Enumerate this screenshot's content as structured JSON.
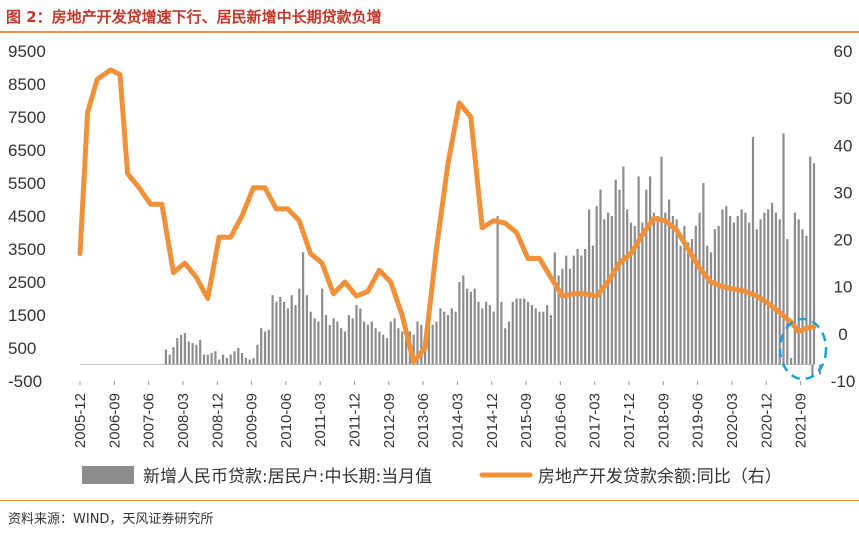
{
  "header": {
    "title": "图 2：房地产开发贷增速下行、居民新增中长期贷款负增"
  },
  "footer": {
    "source": "资料来源：WIND，天风证券研究所"
  },
  "colors": {
    "bar": "#8c8c8c",
    "line": "#f0913a",
    "accent_rule": "#e8913a",
    "highlight": "#1aa3d9",
    "title": "#c0392b"
  },
  "chart_data": {
    "type": "bar+line",
    "left_axis": {
      "ylim": [
        -500,
        9500
      ],
      "ticks": [
        -500,
        500,
        1500,
        2500,
        3500,
        4500,
        5500,
        6500,
        7500,
        8500,
        9500
      ]
    },
    "right_axis": {
      "ylim": [
        -10,
        60
      ],
      "ticks": [
        -10,
        0,
        10,
        20,
        30,
        40,
        50,
        60
      ]
    },
    "x_range": [
      2005.917,
      2021.917
    ],
    "x_tick_labels": [
      "2005-12",
      "2006-09",
      "2007-06",
      "2008-03",
      "2008-12",
      "2009-09",
      "2010-06",
      "2011-03",
      "2011-12",
      "2012-09",
      "2013-06",
      "2014-03",
      "2014-12",
      "2015-09",
      "2016-06",
      "2017-03",
      "2017-12",
      "2018-09",
      "2019-06",
      "2020-03",
      "2020-12",
      "2021-09"
    ],
    "legend": [
      {
        "label": "新增人民币贷款:居民户:中长期:当月值",
        "type": "bar"
      },
      {
        "label": "房地产开发贷款余额:同比（右）",
        "type": "line"
      }
    ],
    "series": [
      {
        "name": "新增人民币贷款:居民户:中长期:当月值",
        "axis": "left",
        "type": "bar",
        "values": [
          [
            2006.958,
            0
          ],
          [
            2007.042,
            0
          ],
          [
            2007.125,
            0
          ],
          [
            2007.208,
            0
          ],
          [
            2007.292,
            0
          ],
          [
            2007.375,
            0
          ],
          [
            2007.458,
            0
          ],
          [
            2007.542,
            0
          ],
          [
            2007.625,
            0
          ],
          [
            2007.708,
            0
          ],
          [
            2007.792,
            450
          ],
          [
            2007.875,
            300
          ],
          [
            2007.958,
            530
          ],
          [
            2008.042,
            800
          ],
          [
            2008.125,
            900
          ],
          [
            2008.208,
            950
          ],
          [
            2008.292,
            700
          ],
          [
            2008.375,
            650
          ],
          [
            2008.458,
            600
          ],
          [
            2008.542,
            750
          ],
          [
            2008.625,
            300
          ],
          [
            2008.708,
            300
          ],
          [
            2008.792,
            350
          ],
          [
            2008.875,
            400
          ],
          [
            2008.958,
            150
          ],
          [
            2009.042,
            300
          ],
          [
            2009.125,
            200
          ],
          [
            2009.208,
            300
          ],
          [
            2009.292,
            400
          ],
          [
            2009.375,
            500
          ],
          [
            2009.458,
            350
          ],
          [
            2009.542,
            200
          ],
          [
            2009.625,
            150
          ],
          [
            2009.708,
            200
          ],
          [
            2009.792,
            600
          ],
          [
            2009.875,
            1100
          ],
          [
            2009.958,
            1000
          ],
          [
            2010.042,
            1050
          ],
          [
            2010.125,
            2100
          ],
          [
            2010.208,
            1900
          ],
          [
            2010.292,
            2050
          ],
          [
            2010.375,
            1900
          ],
          [
            2010.458,
            1700
          ],
          [
            2010.542,
            2100
          ],
          [
            2010.625,
            1800
          ],
          [
            2010.708,
            2300
          ],
          [
            2010.792,
            3400
          ],
          [
            2010.875,
            2100
          ],
          [
            2010.958,
            1600
          ],
          [
            2011.042,
            1400
          ],
          [
            2011.125,
            1300
          ],
          [
            2011.208,
            2300
          ],
          [
            2011.292,
            1500
          ],
          [
            2011.375,
            1200
          ],
          [
            2011.458,
            1400
          ],
          [
            2011.542,
            1300
          ],
          [
            2011.625,
            1100
          ],
          [
            2011.708,
            1000
          ],
          [
            2011.792,
            1500
          ],
          [
            2011.875,
            1400
          ],
          [
            2011.958,
            1800
          ],
          [
            2012.042,
            1700
          ],
          [
            2012.125,
            1300
          ],
          [
            2012.208,
            1200
          ],
          [
            2012.292,
            1300
          ],
          [
            2012.375,
            1100
          ],
          [
            2012.458,
            1000
          ],
          [
            2012.542,
            900
          ],
          [
            2012.625,
            800
          ],
          [
            2012.708,
            1300
          ],
          [
            2012.792,
            1400
          ],
          [
            2012.875,
            1100
          ],
          [
            2012.958,
            1000
          ],
          [
            2013.042,
            1200
          ],
          [
            2013.125,
            1000
          ],
          [
            2013.208,
            900
          ],
          [
            2013.292,
            1300
          ],
          [
            2013.375,
            1200
          ],
          [
            2013.458,
            600
          ],
          [
            2013.542,
            1300
          ],
          [
            2013.625,
            1200
          ],
          [
            2013.708,
            1300
          ],
          [
            2013.792,
            1700
          ],
          [
            2013.875,
            1600
          ],
          [
            2013.958,
            1500
          ],
          [
            2014.042,
            1700
          ],
          [
            2014.125,
            1600
          ],
          [
            2014.208,
            2500
          ],
          [
            2014.292,
            2700
          ],
          [
            2014.375,
            2300
          ],
          [
            2014.458,
            2200
          ],
          [
            2014.542,
            2300
          ],
          [
            2014.625,
            1900
          ],
          [
            2014.708,
            1700
          ],
          [
            2014.792,
            1900
          ],
          [
            2014.875,
            1800
          ],
          [
            2014.958,
            1600
          ],
          [
            2015.042,
            4500
          ],
          [
            2015.125,
            1900
          ],
          [
            2015.208,
            1100
          ],
          [
            2015.292,
            1300
          ],
          [
            2015.375,
            1900
          ],
          [
            2015.458,
            2000
          ],
          [
            2015.542,
            2000
          ],
          [
            2015.625,
            2000
          ],
          [
            2015.708,
            1900
          ],
          [
            2015.792,
            1800
          ],
          [
            2015.875,
            1700
          ],
          [
            2015.958,
            1600
          ],
          [
            2016.042,
            1600
          ],
          [
            2016.125,
            1800
          ],
          [
            2016.208,
            1500
          ],
          [
            2016.292,
            3400
          ],
          [
            2016.375,
            2700
          ],
          [
            2016.458,
            2900
          ],
          [
            2016.542,
            3300
          ],
          [
            2016.625,
            2900
          ],
          [
            2016.708,
            3300
          ],
          [
            2016.792,
            3500
          ],
          [
            2016.875,
            3300
          ],
          [
            2016.958,
            3500
          ],
          [
            2017.042,
            4700
          ],
          [
            2017.125,
            3600
          ],
          [
            2017.208,
            4800
          ],
          [
            2017.292,
            5300
          ],
          [
            2017.375,
            4400
          ],
          [
            2017.458,
            4600
          ],
          [
            2017.542,
            4500
          ],
          [
            2017.625,
            5600
          ],
          [
            2017.708,
            5300
          ],
          [
            2017.792,
            6000
          ],
          [
            2017.875,
            4700
          ],
          [
            2017.958,
            4300
          ],
          [
            2018.042,
            4200
          ],
          [
            2018.125,
            5700
          ],
          [
            2018.208,
            4300
          ],
          [
            2018.292,
            5300
          ],
          [
            2018.375,
            5700
          ],
          [
            2018.458,
            4600
          ],
          [
            2018.542,
            4500
          ],
          [
            2018.625,
            6300
          ],
          [
            2018.708,
            4600
          ],
          [
            2018.792,
            5000
          ],
          [
            2018.875,
            4500
          ],
          [
            2018.958,
            4400
          ],
          [
            2019.042,
            3600
          ],
          [
            2019.125,
            4200
          ],
          [
            2019.208,
            3700
          ],
          [
            2019.292,
            3800
          ],
          [
            2019.375,
            4200
          ],
          [
            2019.458,
            4600
          ],
          [
            2019.542,
            5500
          ],
          [
            2019.625,
            3600
          ],
          [
            2019.708,
            3400
          ],
          [
            2019.792,
            4100
          ],
          [
            2019.875,
            4200
          ],
          [
            2019.958,
            4700
          ],
          [
            2020.042,
            4800
          ],
          [
            2020.125,
            4500
          ],
          [
            2020.208,
            4300
          ],
          [
            2020.292,
            4500
          ],
          [
            2020.375,
            4700
          ],
          [
            2020.458,
            4600
          ],
          [
            2020.542,
            4300
          ],
          [
            2020.625,
            6900
          ],
          [
            2020.708,
            4100
          ],
          [
            2020.792,
            4400
          ],
          [
            2020.875,
            4600
          ],
          [
            2020.958,
            4700
          ],
          [
            2021.042,
            4900
          ],
          [
            2021.125,
            4600
          ],
          [
            2021.208,
            4400
          ],
          [
            2021.292,
            7000
          ],
          [
            2021.375,
            3800
          ],
          [
            2021.458,
            200
          ],
          [
            2021.542,
            4600
          ],
          [
            2021.625,
            4400
          ],
          [
            2021.708,
            4100
          ],
          [
            2021.792,
            3900
          ],
          [
            2021.875,
            6300
          ],
          [
            2021.958,
            6100
          ]
        ]
      },
      {
        "name": "房地产开发贷款余额:同比（右）",
        "axis": "right",
        "type": "line",
        "values": [
          [
            2005.917,
            17
          ],
          [
            2006.083,
            47
          ],
          [
            2006.292,
            54
          ],
          [
            2006.583,
            56
          ],
          [
            2006.792,
            55
          ],
          [
            2006.958,
            34
          ],
          [
            2007.208,
            31
          ],
          [
            2007.458,
            27.5
          ],
          [
            2007.708,
            27.5
          ],
          [
            2007.958,
            13
          ],
          [
            2008.208,
            15
          ],
          [
            2008.458,
            12
          ],
          [
            2008.708,
            7.5
          ],
          [
            2008.958,
            20.5
          ],
          [
            2009.208,
            20.5
          ],
          [
            2009.458,
            25
          ],
          [
            2009.708,
            31
          ],
          [
            2009.958,
            31
          ],
          [
            2010.208,
            26.5
          ],
          [
            2010.458,
            26.5
          ],
          [
            2010.708,
            24
          ],
          [
            2010.958,
            17
          ],
          [
            2011.208,
            15
          ],
          [
            2011.458,
            8.5
          ],
          [
            2011.708,
            11
          ],
          [
            2011.958,
            8
          ],
          [
            2012.208,
            9
          ],
          [
            2012.458,
            13.5
          ],
          [
            2012.708,
            11
          ],
          [
            2012.958,
            4
          ],
          [
            2013.208,
            -6
          ],
          [
            2013.458,
            -3
          ],
          [
            2013.708,
            18
          ],
          [
            2013.958,
            36
          ],
          [
            2014.208,
            49
          ],
          [
            2014.458,
            46
          ],
          [
            2014.708,
            22.5
          ],
          [
            2014.958,
            24
          ],
          [
            2015.208,
            23.5
          ],
          [
            2015.458,
            21.5
          ],
          [
            2015.708,
            16
          ],
          [
            2015.958,
            16
          ],
          [
            2016.208,
            12
          ],
          [
            2016.458,
            8
          ],
          [
            2016.708,
            8.5
          ],
          [
            2016.958,
            8.5
          ],
          [
            2017.208,
            8
          ],
          [
            2017.458,
            11
          ],
          [
            2017.708,
            15
          ],
          [
            2017.958,
            17
          ],
          [
            2018.208,
            21
          ],
          [
            2018.458,
            24.5
          ],
          [
            2018.708,
            24
          ],
          [
            2018.958,
            22
          ],
          [
            2019.208,
            18
          ],
          [
            2019.458,
            14
          ],
          [
            2019.708,
            11
          ],
          [
            2019.958,
            10
          ],
          [
            2020.208,
            9.5
          ],
          [
            2020.458,
            9
          ],
          [
            2020.708,
            8
          ],
          [
            2020.958,
            6.5
          ],
          [
            2021.208,
            4.5
          ],
          [
            2021.458,
            2.5
          ],
          [
            2021.625,
            0.5
          ],
          [
            2021.792,
            1.2
          ],
          [
            2021.958,
            1.5
          ]
        ]
      }
    ]
  }
}
